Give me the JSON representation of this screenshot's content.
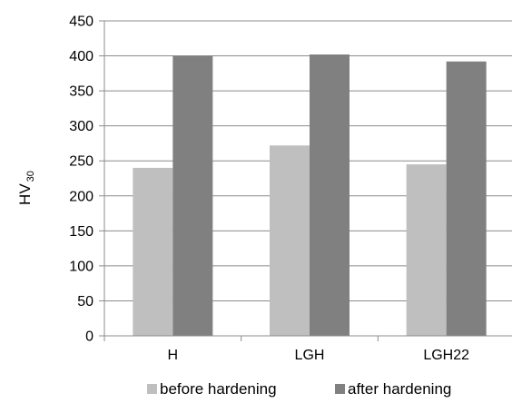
{
  "chart_data": {
    "type": "bar",
    "categories": [
      "H",
      "LGH",
      "LGH22"
    ],
    "series": [
      {
        "name": "before hardening",
        "values": [
          240,
          272,
          245
        ],
        "color": "#bfbfbf"
      },
      {
        "name": "after hardening",
        "values": [
          400,
          402,
          392
        ],
        "color": "#808080"
      }
    ],
    "ylabel": {
      "main": "HV",
      "sub": "30"
    },
    "ylim": [
      0,
      450
    ],
    "yticks": [
      0,
      50,
      100,
      150,
      200,
      250,
      300,
      350,
      400,
      450
    ],
    "grid": true,
    "legend": "bottom-center",
    "colors": {
      "grid": "#8c8c8c",
      "axis": "#8c8c8c"
    }
  }
}
